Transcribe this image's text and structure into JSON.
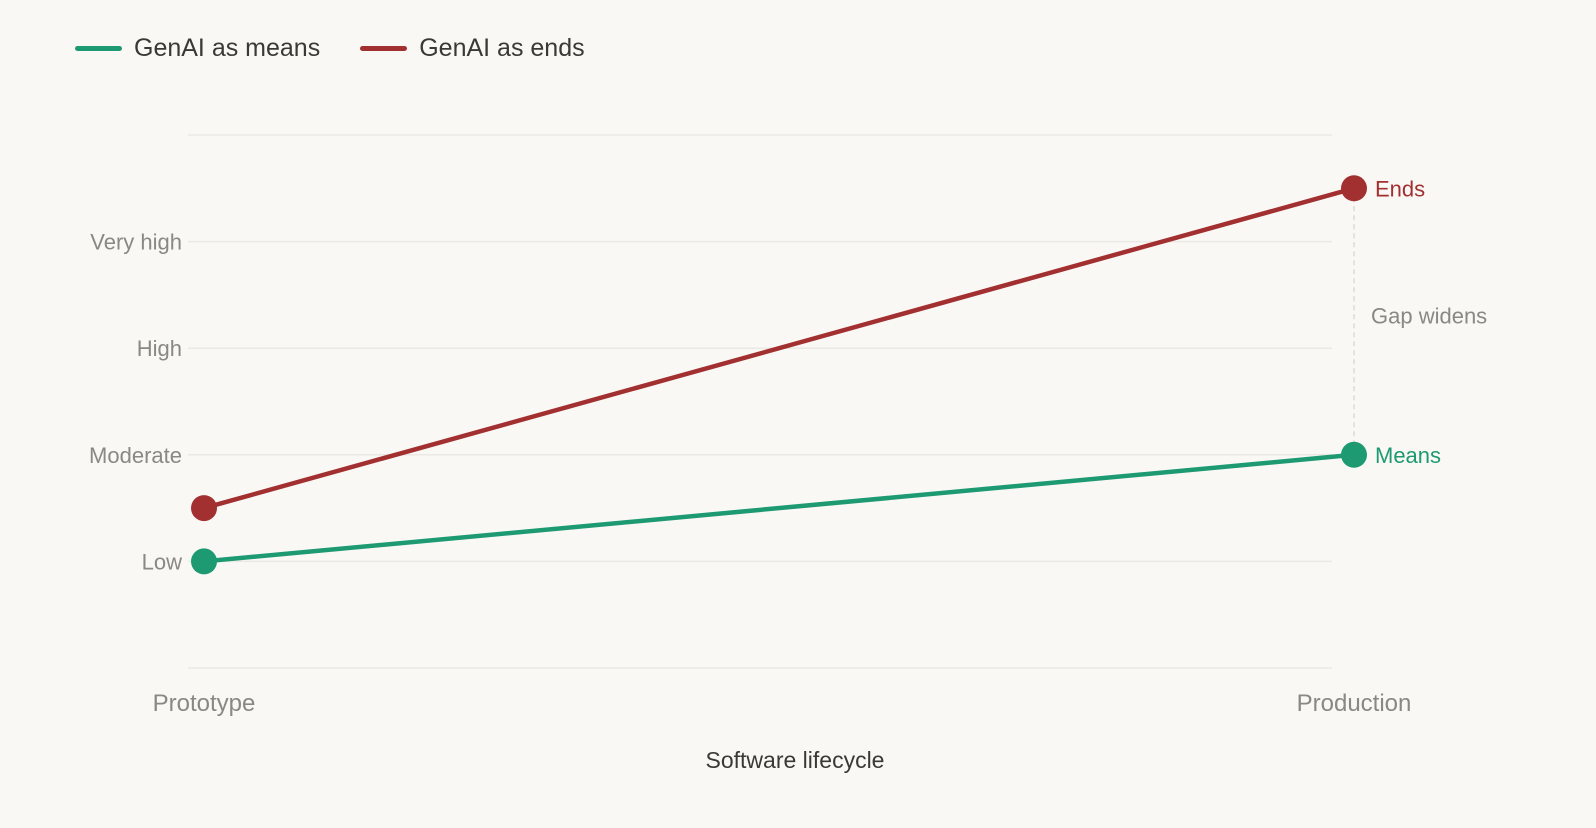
{
  "chart_data": {
    "type": "line",
    "title": "",
    "xlabel": "Software lifecycle",
    "ylabel": "",
    "categories": [
      "Prototype",
      "Production"
    ],
    "y_levels": [
      {
        "label": "Low",
        "value": 1
      },
      {
        "label": "Moderate",
        "value": 2
      },
      {
        "label": "High",
        "value": 3
      },
      {
        "label": "Very high",
        "value": 4
      }
    ],
    "ylim": [
      0,
      5
    ],
    "grid": true,
    "legend": "top-left",
    "series": [
      {
        "name": "GenAI as means",
        "color": "#1e9a72",
        "values": [
          1,
          2
        ],
        "end_label": "Means"
      },
      {
        "name": "GenAI as ends",
        "color": "#a33031",
        "values": [
          1.5,
          4.5
        ],
        "end_label": "Ends"
      }
    ],
    "annotations": [
      {
        "text": "Gap widens",
        "at_category": "Production",
        "between": [
          2,
          4.5
        ]
      }
    ]
  },
  "colors": {
    "background": "#f9f8f4",
    "grid": "#ebe9e3",
    "tick_text": "#8a8883",
    "axis_title": "#3a3936"
  }
}
